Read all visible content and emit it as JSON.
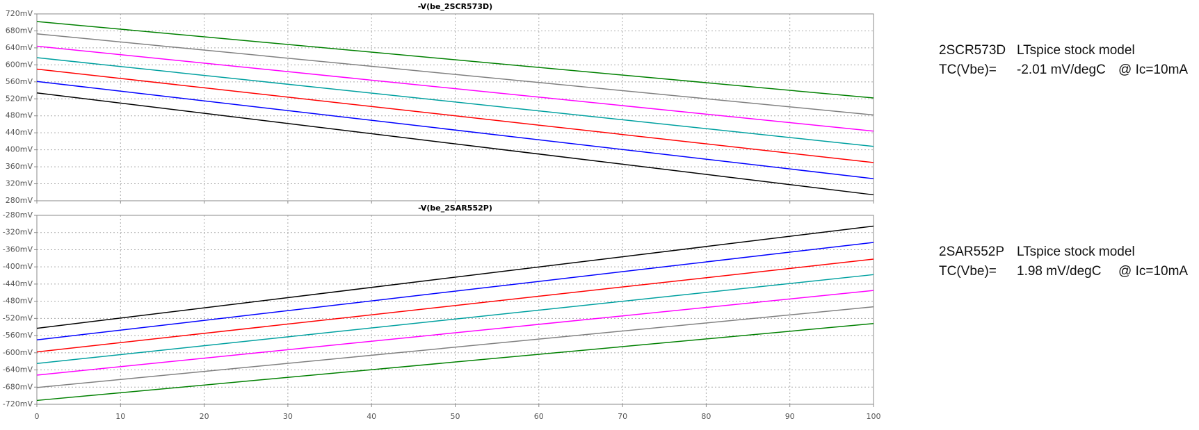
{
  "chart_data": [
    {
      "type": "line",
      "title": "-V(be_2SCR573D)",
      "x": [
        0,
        100
      ],
      "xlim": [
        0,
        100
      ],
      "ylim": [
        280,
        720
      ],
      "yticks": [
        {
          "value": 280,
          "label": "280mV"
        },
        {
          "value": 320,
          "label": "320mV"
        },
        {
          "value": 360,
          "label": "360mV"
        },
        {
          "value": 400,
          "label": "400mV"
        },
        {
          "value": 440,
          "label": "440mV"
        },
        {
          "value": 480,
          "label": "480mV"
        },
        {
          "value": 520,
          "label": "520mV"
        },
        {
          "value": 560,
          "label": "560mV"
        },
        {
          "value": 600,
          "label": "600mV"
        },
        {
          "value": 640,
          "label": "640mV"
        },
        {
          "value": 680,
          "label": "680mV"
        },
        {
          "value": 720,
          "label": "720mV"
        }
      ],
      "grid": true,
      "series": [
        {
          "color": "#008000",
          "values": [
            702,
            522
          ]
        },
        {
          "color": "#808080",
          "values": [
            673,
            482
          ]
        },
        {
          "color": "#ff00ff",
          "values": [
            644,
            444
          ]
        },
        {
          "color": "#00a0a0",
          "values": [
            617,
            408
          ]
        },
        {
          "color": "#ff0000",
          "values": [
            590,
            370
          ]
        },
        {
          "color": "#0000ff",
          "values": [
            561,
            332
          ]
        },
        {
          "color": "#000000",
          "values": [
            534,
            294
          ]
        }
      ],
      "annotations": [
        [
          "2SCR573D",
          "LTspice stock model"
        ],
        [
          "TC(Vbe)=",
          "-2.01 mV/degC",
          "@ Ic=10mA"
        ]
      ]
    },
    {
      "type": "line",
      "title": "-V(be_2SAR552P)",
      "x": [
        0,
        100
      ],
      "xlim": [
        0,
        100
      ],
      "xticks": [
        0,
        10,
        20,
        30,
        40,
        50,
        60,
        70,
        80,
        90,
        100
      ],
      "ylim": [
        -720,
        -280
      ],
      "yticks": [
        {
          "value": -720,
          "label": "-720mV"
        },
        {
          "value": -680,
          "label": "-680mV"
        },
        {
          "value": -640,
          "label": "-640mV"
        },
        {
          "value": -600,
          "label": "-600mV"
        },
        {
          "value": -560,
          "label": "-560mV"
        },
        {
          "value": -520,
          "label": "-520mV"
        },
        {
          "value": -480,
          "label": "-480mV"
        },
        {
          "value": -440,
          "label": "-440mV"
        },
        {
          "value": -400,
          "label": "-400mV"
        },
        {
          "value": -360,
          "label": "-360mV"
        },
        {
          "value": -320,
          "label": "-320mV"
        },
        {
          "value": -280,
          "label": "-280mV"
        }
      ],
      "grid": true,
      "series": [
        {
          "color": "#000000",
          "values": [
            -543,
            -305
          ]
        },
        {
          "color": "#0000ff",
          "values": [
            -570,
            -343
          ]
        },
        {
          "color": "#ff0000",
          "values": [
            -598,
            -382
          ]
        },
        {
          "color": "#00a0a0",
          "values": [
            -625,
            -418
          ]
        },
        {
          "color": "#ff00ff",
          "values": [
            -652,
            -455
          ]
        },
        {
          "color": "#808080",
          "values": [
            -681,
            -493
          ]
        },
        {
          "color": "#008000",
          "values": [
            -711,
            -532
          ]
        }
      ],
      "annotations": [
        [
          "2SAR552P",
          "LTspice stock model"
        ],
        [
          "TC(Vbe)=",
          "1.98 mV/degC",
          "@ Ic=10mA"
        ]
      ]
    }
  ]
}
